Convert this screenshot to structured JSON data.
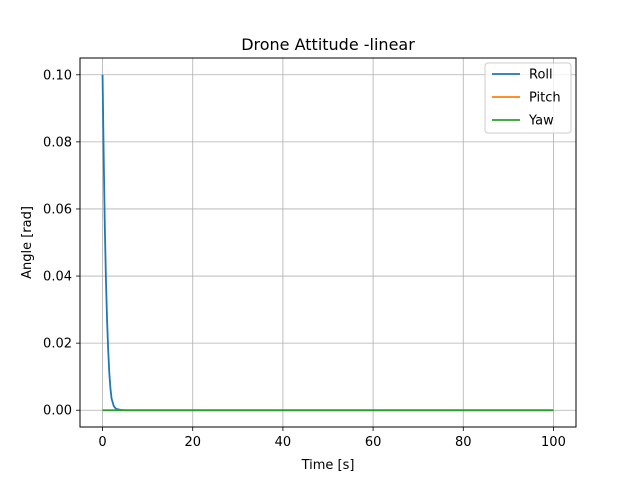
{
  "chart_data": {
    "type": "line",
    "title": "Drone Attitude -linear",
    "xlabel": "Time [s]",
    "ylabel": "Angle [rad]",
    "xlim": [
      -5,
      105
    ],
    "ylim": [
      -0.005,
      0.105
    ],
    "xticks": [
      0,
      20,
      40,
      60,
      80,
      100
    ],
    "yticks": [
      0.0,
      0.02,
      0.04,
      0.06,
      0.08,
      0.1
    ],
    "xtick_labels": [
      "0",
      "20",
      "40",
      "60",
      "80",
      "100"
    ],
    "ytick_labels": [
      "0.00",
      "0.02",
      "0.04",
      "0.06",
      "0.08",
      "0.10"
    ],
    "grid": true,
    "legend_position": "top-right",
    "series": [
      {
        "name": "Roll",
        "color": "#1f77b4",
        "x": [
          0,
          0.25,
          0.5,
          0.75,
          1.0,
          1.25,
          1.5,
          1.75,
          2.0,
          2.5,
          3.0,
          4.0,
          5.0,
          10,
          20,
          40,
          60,
          80,
          100
        ],
        "y": [
          0.1,
          0.076,
          0.055,
          0.039,
          0.027,
          0.018,
          0.011,
          0.0065,
          0.0035,
          0.0012,
          0.0004,
          0.0001,
          0.0,
          0.0,
          0.0,
          0.0,
          0.0,
          0.0,
          0.0
        ]
      },
      {
        "name": "Pitch",
        "color": "#ff7f0e",
        "x": [
          0,
          100
        ],
        "y": [
          0.0,
          0.0
        ]
      },
      {
        "name": "Yaw",
        "color": "#2ca02c",
        "x": [
          0,
          100
        ],
        "y": [
          0.0,
          0.0
        ]
      }
    ]
  }
}
